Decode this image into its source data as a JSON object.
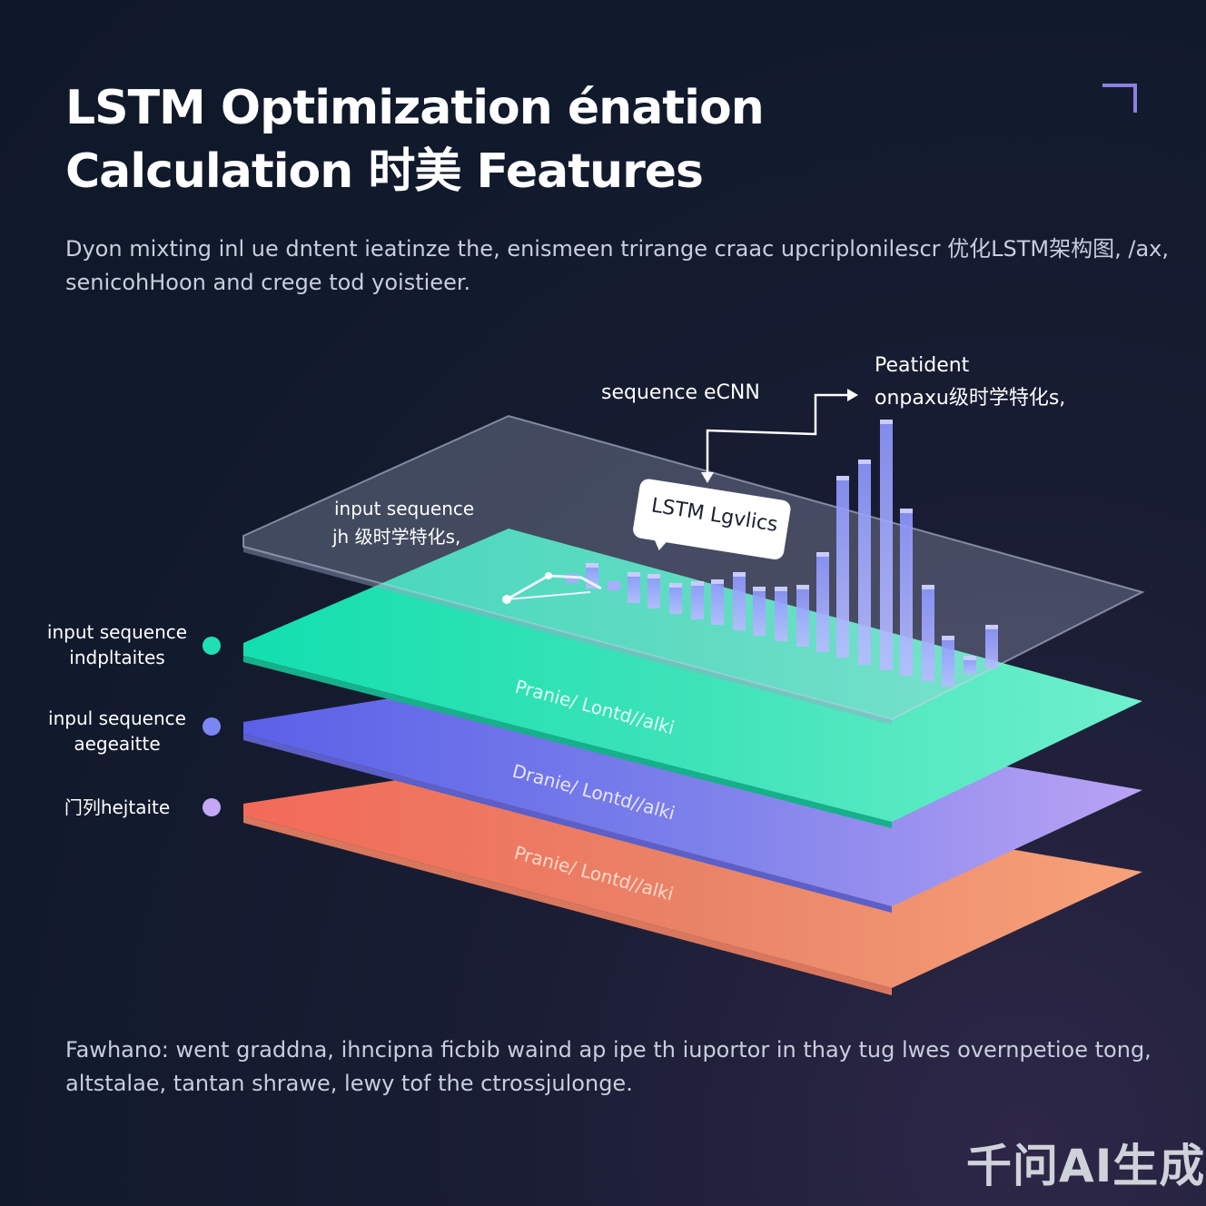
{
  "header": {
    "title_line1": "LSTM Optimization énation",
    "title_line2": "Calculation 时美 Features"
  },
  "intro": {
    "line1": "Dyon mixting inl ue dntent ieatinze the, enismeen trirange craac upcriplonilescr 优化LSTM架构图, /ax,",
    "line2": "senicohHoon and crege tod yoistieer."
  },
  "diagram": {
    "callouts": {
      "top_seq": "sequence eCNN",
      "peak_line1": "Peatident",
      "peak_line2": "onpaxu级时学特化s,",
      "input_line1": "input sequence",
      "input_line2": "jh 级时学特化s,",
      "bubble": "LSTM Lgvlics"
    },
    "layer_labels": [
      "Pranie/ Lontd//alki",
      "Dranie/ Lontd//alki",
      "Pranie/ Lontd//alki"
    ],
    "colors": {
      "teal": "#3fe7bd",
      "blue": "#7a82f2",
      "salmon": "#f08a6c",
      "bars": "#8f96f5",
      "lavender": "#c4a8f7"
    }
  },
  "legend": [
    {
      "line1": "input sequence",
      "line2": "indpltaites",
      "color": "#1fe0b3"
    },
    {
      "line1": "inpul sequence",
      "line2": "aegeaitte",
      "color": "#7b86f2"
    },
    {
      "line1": "门列hejtaite",
      "line2": "",
      "color": "#c4a8f7"
    }
  ],
  "footer": {
    "line1": "Fawhano: went graddna, ihncipna ficbib waind ap ipe th iuportor in thay tug lwes overnpetioe tong,",
    "line2": "altstalae, tantan shrawe, lewy tof the ctrossjulonge."
  },
  "watermark": "千问AI生成"
}
